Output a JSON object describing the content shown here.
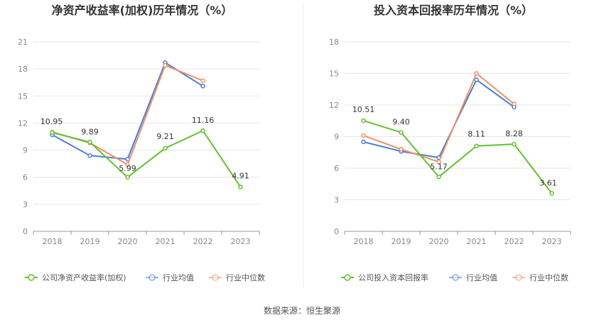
{
  "footer": {
    "source": "数据来源：恒生聚源"
  },
  "chart_data": [
    {
      "type": "line",
      "title": "净资产收益率(加权)历年情况（%）",
      "categories": [
        "2018",
        "2019",
        "2020",
        "2021",
        "2022",
        "2023"
      ],
      "ylim": [
        0,
        21
      ],
      "yticks": [
        0,
        3,
        6,
        9,
        12,
        15,
        18,
        21
      ],
      "grid": true,
      "legend_position": "bottom",
      "series": [
        {
          "name": "公司净资产收益率(加权)",
          "color": "#63c132",
          "values": [
            10.95,
            9.89,
            5.99,
            9.21,
            11.16,
            4.91
          ],
          "show_labels": true
        },
        {
          "name": "行业均值",
          "color": "#4a7fd4",
          "values": [
            10.7,
            8.4,
            8.0,
            18.7,
            16.1,
            null
          ],
          "show_labels": false
        },
        {
          "name": "行业中位数",
          "color": "#f0906a",
          "values": [
            11.0,
            9.8,
            7.4,
            18.4,
            16.7,
            null
          ],
          "show_labels": false
        }
      ]
    },
    {
      "type": "line",
      "title": "投入资本回报率历年情况（%）",
      "categories": [
        "2018",
        "2019",
        "2020",
        "2021",
        "2022",
        "2023"
      ],
      "ylim": [
        0,
        18
      ],
      "yticks": [
        0,
        3,
        6,
        9,
        12,
        15,
        18
      ],
      "grid": true,
      "legend_position": "bottom",
      "series": [
        {
          "name": "公司投入资本回报率",
          "color": "#63c132",
          "values": [
            10.51,
            9.4,
            5.17,
            8.11,
            8.28,
            3.61
          ],
          "show_labels": true
        },
        {
          "name": "行业均值",
          "color": "#4a7fd4",
          "values": [
            8.5,
            7.6,
            7.0,
            14.4,
            11.8,
            null
          ],
          "show_labels": false
        },
        {
          "name": "行业中位数",
          "color": "#f0906a",
          "values": [
            9.1,
            7.8,
            6.6,
            15.0,
            12.1,
            null
          ],
          "show_labels": false
        }
      ]
    }
  ]
}
